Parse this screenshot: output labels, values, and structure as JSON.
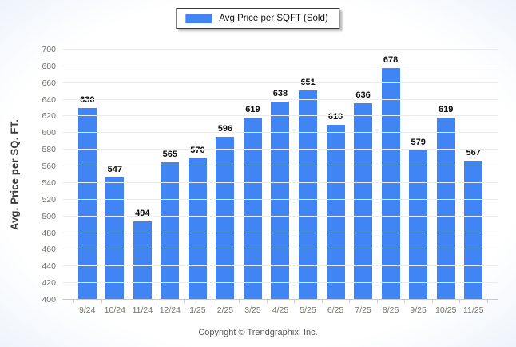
{
  "legend": {
    "label": "Avg Price per SQFT (Sold)"
  },
  "footer": {
    "text": "Copyright © Trendgraphix, Inc."
  },
  "chart_data": {
    "type": "bar",
    "title": "",
    "xlabel": "",
    "ylabel": "Avg. Price per SQ. FT.",
    "categories": [
      "9/24",
      "10/24",
      "11/24",
      "12/24",
      "1/25",
      "2/25",
      "3/25",
      "4/25",
      "5/25",
      "6/25",
      "7/25",
      "8/25",
      "9/25",
      "10/25",
      "11/25"
    ],
    "values": [
      630,
      547,
      494,
      565,
      570,
      596,
      619,
      638,
      651,
      610,
      636,
      678,
      579,
      619,
      567
    ],
    "ylim": [
      400,
      700
    ],
    "ytick_step": 20,
    "grid": true,
    "legend_position": "top-center"
  },
  "colors": {
    "bar": "#4184F3",
    "grid": "#ececec",
    "axis": "#c9c9c9",
    "tick_text": "#73736b",
    "value_text": "#0d0d0d",
    "axis_title": "#3a3a3a",
    "footer_text": "#595959",
    "legend_border": "#3b3b3b"
  }
}
